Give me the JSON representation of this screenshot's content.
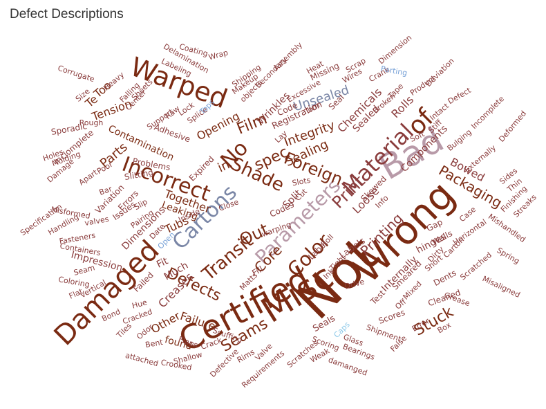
{
  "title": "Defect Descriptions",
  "colors": {
    "dark": "#7a2a12",
    "medium": "#8a3c3c",
    "light": "#a06a6a",
    "mauve": "#b89aa8",
    "slate": "#7a86a6",
    "blue": "#7aa3d8",
    "cyan": "#8ac8e8"
  },
  "chart_data": {
    "type": "wordcloud",
    "words": [
      {
        "text": "Not",
        "color": "dark"
      },
      {
        "text": "Wrong",
        "color": "dark"
      },
      {
        "text": "Misc",
        "color": "dark"
      },
      {
        "text": "Certified",
        "color": "dark"
      },
      {
        "text": "Bad",
        "color": "mauve"
      },
      {
        "text": "Damaged",
        "color": "dark"
      },
      {
        "text": "Warped",
        "color": "dark"
      },
      {
        "text": "of",
        "color": "dark"
      },
      {
        "text": "Material",
        "color": "medium"
      },
      {
        "text": "Cartons",
        "color": "slate"
      },
      {
        "text": "Incorrect",
        "color": "dark"
      },
      {
        "text": "Parameters",
        "color": "mauve"
      },
      {
        "text": "No",
        "color": "dark"
      },
      {
        "text": "Shade",
        "color": "dark"
      },
      {
        "text": "Color",
        "color": "dark"
      },
      {
        "text": "Print",
        "color": "medium"
      },
      {
        "text": "Foreign",
        "color": "dark"
      },
      {
        "text": "Transit",
        "color": "dark"
      },
      {
        "text": "Out",
        "color": "dark"
      },
      {
        "text": "Film",
        "color": "dark"
      },
      {
        "text": "spec",
        "color": "dark"
      },
      {
        "text": "Stuck",
        "color": "dark"
      },
      {
        "text": "Seams",
        "color": "dark"
      },
      {
        "text": "Defects",
        "color": "dark"
      },
      {
        "text": "Printing",
        "color": "medium"
      },
      {
        "text": "Core",
        "color": "dark"
      },
      {
        "text": "Packaging",
        "color": "dark"
      },
      {
        "text": "Unsealed",
        "color": "slate"
      },
      {
        "text": "Integrity",
        "color": "dark"
      },
      {
        "text": "Sealing",
        "color": "dark"
      },
      {
        "text": "Opening",
        "color": "dark"
      },
      {
        "text": "Other",
        "color": "dark"
      },
      {
        "text": "Failure",
        "color": "dark"
      },
      {
        "text": "Tubs",
        "color": "dark"
      },
      {
        "text": "Loose",
        "color": "medium"
      },
      {
        "text": "Bowed",
        "color": "medium"
      },
      {
        "text": "Parts",
        "color": "dark"
      },
      {
        "text": "Tension",
        "color": "dark"
      },
      {
        "text": "Contamination",
        "color": "dark"
      },
      {
        "text": "Together",
        "color": "dark"
      },
      {
        "text": "Leaking",
        "color": "dark"
      },
      {
        "text": "in",
        "color": "dark"
      },
      {
        "text": "Creases",
        "color": "medium"
      },
      {
        "text": "found",
        "color": "dark"
      },
      {
        "text": "Much",
        "color": "medium"
      },
      {
        "text": "Fit",
        "color": "medium"
      },
      {
        "text": "Wrinkles",
        "color": "medium"
      },
      {
        "text": "Chemicals",
        "color": "medium"
      },
      {
        "text": "Sealed",
        "color": "medium"
      },
      {
        "text": "Rolls",
        "color": "medium"
      },
      {
        "text": "Internally",
        "color": "medium"
      },
      {
        "text": "Too",
        "color": "dark"
      },
      {
        "text": "Te",
        "color": "dark"
      },
      {
        "text": "Impression",
        "color": "medium"
      },
      {
        "text": "Dimensions",
        "color": "medium"
      },
      {
        "text": "Labels",
        "color": "medium"
      },
      {
        "text": "Components",
        "color": "medium"
      },
      {
        "text": "Registration",
        "color": "medium"
      },
      {
        "text": "Label",
        "color": "medium"
      },
      {
        "text": "hinges",
        "color": "medium"
      },
      {
        "text": "Seals",
        "color": "medium"
      },
      {
        "text": "Split",
        "color": "medium"
      },
      {
        "text": "Skewed",
        "color": "medium"
      },
      {
        "text": "Code",
        "color": "medium"
      },
      {
        "text": "Seal",
        "color": "medium"
      },
      {
        "text": "Smeared",
        "color": "medium"
      },
      {
        "text": "Codes",
        "color": "medium"
      },
      {
        "text": "Fill",
        "color": "medium"
      },
      {
        "text": "Test",
        "color": "medium"
      },
      {
        "text": "Gap",
        "color": "medium"
      },
      {
        "text": "Walls",
        "color": "medium"
      },
      {
        "text": "Dents",
        "color": "medium"
      },
      {
        "text": "Cleaned",
        "color": "medium"
      },
      {
        "text": "Grease",
        "color": "medium"
      },
      {
        "text": "Scores",
        "color": "medium"
      },
      {
        "text": "Shipment",
        "color": "medium"
      },
      {
        "text": "Scoring",
        "color": "medium"
      },
      {
        "text": "Bearings",
        "color": "medium"
      },
      {
        "text": "Glass",
        "color": "medium"
      },
      {
        "text": "Scratches",
        "color": "medium"
      },
      {
        "text": "Weak",
        "color": "medium"
      },
      {
        "text": "damanged",
        "color": "medium"
      },
      {
        "text": "Valve",
        "color": "medium"
      },
      {
        "text": "Rims",
        "color": "medium"
      },
      {
        "text": "Defective",
        "color": "medium"
      },
      {
        "text": "Requirements",
        "color": "medium"
      },
      {
        "text": "Scuffing",
        "color": "medium"
      },
      {
        "text": "Crack",
        "color": "medium"
      },
      {
        "text": "Flaps",
        "color": "medium"
      },
      {
        "text": "Shallow",
        "color": "medium"
      },
      {
        "text": "Crooked",
        "color": "medium"
      },
      {
        "text": "attached",
        "color": "medium"
      },
      {
        "text": "Bent",
        "color": "medium"
      },
      {
        "text": "Odor",
        "color": "medium"
      },
      {
        "text": "Tiles",
        "color": "medium"
      },
      {
        "text": "Cracked",
        "color": "medium"
      },
      {
        "text": "Bond",
        "color": "medium"
      },
      {
        "text": "Hue",
        "color": "medium"
      },
      {
        "text": "Failed",
        "color": "medium"
      },
      {
        "text": "Coloring",
        "color": "medium"
      },
      {
        "text": "Seam",
        "color": "medium"
      },
      {
        "text": "Flat",
        "color": "medium"
      },
      {
        "text": "Vertical",
        "color": "medium"
      },
      {
        "text": "Containers",
        "color": "medium"
      },
      {
        "text": "Fasteners",
        "color": "medium"
      },
      {
        "text": "Specification",
        "color": "medium"
      },
      {
        "text": "Handling",
        "color": "medium"
      },
      {
        "text": "Misformed",
        "color": "medium"
      },
      {
        "text": "valves",
        "color": "medium"
      },
      {
        "text": "Variation",
        "color": "medium"
      },
      {
        "text": "Issues",
        "color": "medium"
      },
      {
        "text": "Bar",
        "color": "medium"
      },
      {
        "text": "Apart",
        "color": "medium"
      },
      {
        "text": "Poor",
        "color": "medium"
      },
      {
        "text": "Errors",
        "color": "medium"
      },
      {
        "text": "Slip",
        "color": "medium"
      },
      {
        "text": "Pairing",
        "color": "medium"
      },
      {
        "text": "Inside",
        "color": "medium"
      },
      {
        "text": "Date",
        "color": "medium"
      },
      {
        "text": "Open",
        "color": "blue"
      },
      {
        "text": "Slitting",
        "color": "medium"
      },
      {
        "text": "Problems",
        "color": "medium"
      },
      {
        "text": "Expired",
        "color": "medium"
      },
      {
        "text": "Adhesive",
        "color": "medium"
      },
      {
        "text": "Inclomplete",
        "color": "medium"
      },
      {
        "text": "Damage",
        "color": "medium"
      },
      {
        "text": "Holes",
        "color": "medium"
      },
      {
        "text": "Molding",
        "color": "medium"
      },
      {
        "text": "Sporadic",
        "color": "medium"
      },
      {
        "text": "Rough",
        "color": "medium"
      },
      {
        "text": "Support",
        "color": "medium"
      },
      {
        "text": "Raw",
        "color": "medium"
      },
      {
        "text": "Lock",
        "color": "medium"
      },
      {
        "text": "Splice",
        "color": "medium"
      },
      {
        "text": "Tops",
        "color": "blue"
      },
      {
        "text": "Center",
        "color": "medium"
      },
      {
        "text": "Sheets",
        "color": "medium"
      },
      {
        "text": "Falling",
        "color": "medium"
      },
      {
        "text": "Heavy",
        "color": "medium"
      },
      {
        "text": "Size",
        "color": "medium"
      },
      {
        "text": "Corrugate",
        "color": "medium"
      },
      {
        "text": "Labeling",
        "color": "medium"
      },
      {
        "text": "Delamination",
        "color": "medium"
      },
      {
        "text": "Coating",
        "color": "medium"
      },
      {
        "text": "Wrap",
        "color": "medium"
      },
      {
        "text": "Shipping",
        "color": "medium"
      },
      {
        "text": "Makeup",
        "color": "medium"
      },
      {
        "text": "objects",
        "color": "medium"
      },
      {
        "text": "Secondary",
        "color": "medium"
      },
      {
        "text": "Assembly",
        "color": "medium"
      },
      {
        "text": "Heat",
        "color": "medium"
      },
      {
        "text": "Missing",
        "color": "medium"
      },
      {
        "text": "Excessive",
        "color": "medium"
      },
      {
        "text": "Torn",
        "color": "medium"
      },
      {
        "text": "Scrap",
        "color": "medium"
      },
      {
        "text": "Wires",
        "color": "medium"
      },
      {
        "text": "Crank",
        "color": "medium"
      },
      {
        "text": "Dimension",
        "color": "medium"
      },
      {
        "text": "Parting",
        "color": "blue"
      },
      {
        "text": "Broken",
        "color": "medium"
      },
      {
        "text": "Tape",
        "color": "medium"
      },
      {
        "text": "Product",
        "color": "medium"
      },
      {
        "text": "Deviation",
        "color": "medium"
      },
      {
        "text": "Intact",
        "color": "medium"
      },
      {
        "text": "Defect",
        "color": "medium"
      },
      {
        "text": "Stiff",
        "color": "medium"
      },
      {
        "text": "Soft",
        "color": "medium"
      },
      {
        "text": "Incomplete",
        "color": "medium"
      },
      {
        "text": "Bulging",
        "color": "medium"
      },
      {
        "text": "Deformed",
        "color": "medium"
      },
      {
        "text": "Externally",
        "color": "medium"
      },
      {
        "text": "Sides",
        "color": "medium"
      },
      {
        "text": "Thin",
        "color": "medium"
      },
      {
        "text": "Streaks",
        "color": "medium"
      },
      {
        "text": "Finishing",
        "color": "medium"
      },
      {
        "text": "Case",
        "color": "medium"
      },
      {
        "text": "Horizontal",
        "color": "medium"
      },
      {
        "text": "Mishandled",
        "color": "medium"
      },
      {
        "text": "Carton",
        "color": "medium"
      },
      {
        "text": "Spring",
        "color": "medium"
      },
      {
        "text": "Scratched",
        "color": "medium"
      },
      {
        "text": "Misaligned",
        "color": "medium"
      },
      {
        "text": "Short",
        "color": "medium"
      },
      {
        "text": "Dirty",
        "color": "medium"
      },
      {
        "text": "Mixed",
        "color": "medium"
      },
      {
        "text": "Off",
        "color": "medium"
      },
      {
        "text": "Error",
        "color": "medium"
      },
      {
        "text": "Box",
        "color": "medium"
      },
      {
        "text": "False",
        "color": "medium"
      },
      {
        "text": "Drive",
        "color": "medium"
      },
      {
        "text": "Caps",
        "color": "cyan"
      },
      {
        "text": "Tight",
        "color": "medium"
      },
      {
        "text": "Ink",
        "color": "medium"
      },
      {
        "text": "Roll",
        "color": "medium"
      },
      {
        "text": "Info",
        "color": "medium"
      },
      {
        "text": "Cut",
        "color": "medium"
      },
      {
        "text": "Slots",
        "color": "medium"
      },
      {
        "text": "Lay",
        "color": "medium"
      },
      {
        "text": "warping",
        "color": "medium"
      },
      {
        "text": "Close",
        "color": "medium"
      },
      {
        "text": "Matts",
        "color": "medium"
      }
    ]
  }
}
